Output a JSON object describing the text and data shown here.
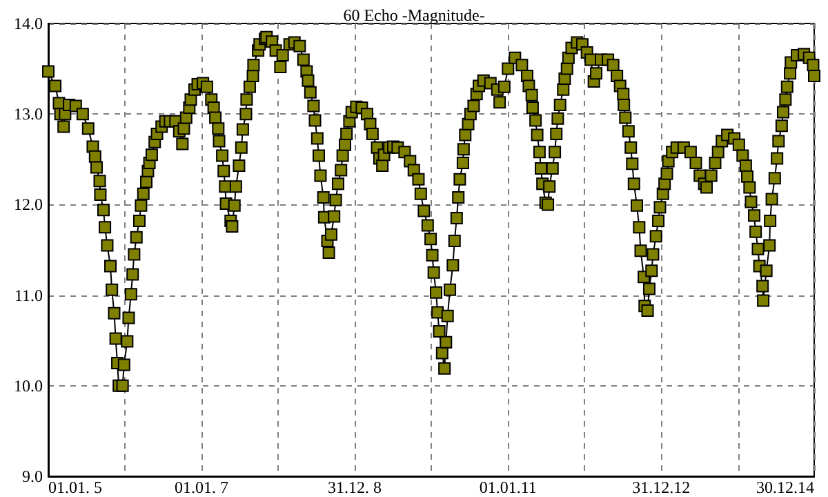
{
  "chart_data": {
    "type": "line",
    "title": "60 Echo -Magnitude-",
    "marker": "square",
    "line_style": "solid",
    "grid": true,
    "xlim": [
      "2005-01-01",
      "2014-12-30"
    ],
    "xticks": [
      {
        "value": "2005-01-01",
        "label": "01.01. 5"
      },
      {
        "value": "2006-01-01",
        "label": null
      },
      {
        "value": "2007-01-01",
        "label": "01.01. 7"
      },
      {
        "value": "2008-01-01",
        "label": null
      },
      {
        "value": "2008-12-31",
        "label": "31.12. 8"
      },
      {
        "value": "2010-01-01",
        "label": null
      },
      {
        "value": "2011-01-01",
        "label": "01.01.11"
      },
      {
        "value": "2012-01-01",
        "label": null
      },
      {
        "value": "2012-12-31",
        "label": "31.12.12"
      },
      {
        "value": "2014-01-01",
        "label": null
      },
      {
        "value": "2014-12-30",
        "label": "30.12.14"
      }
    ],
    "ylim": [
      9,
      14
    ],
    "yticks": [
      {
        "value": 9,
        "label": "9.0"
      },
      {
        "value": 10,
        "label": "10.0"
      },
      {
        "value": 11,
        "label": "11.0"
      },
      {
        "value": 12,
        "label": "12.0"
      },
      {
        "value": 13,
        "label": "13.0"
      },
      {
        "value": 14,
        "label": "14.0"
      }
    ],
    "x": [
      "2005-01-01",
      "2005-02-03",
      "2005-02-21",
      "2005-02-28",
      "2005-03-15",
      "2005-03-22",
      "2005-04-10",
      "2005-05-12",
      "2005-06-14",
      "2005-07-10",
      "2005-08-01",
      "2005-08-12",
      "2005-08-19",
      "2005-09-03",
      "2005-09-06",
      "2005-09-21",
      "2005-09-28",
      "2005-10-09",
      "2005-10-24",
      "2005-10-31",
      "2005-11-11",
      "2005-11-18",
      "2005-11-26",
      "2005-12-03",
      "2005-12-21",
      "2005-12-28",
      "2006-01-12",
      "2006-01-19",
      "2006-01-30",
      "2006-02-07",
      "2006-02-14",
      "2006-02-25",
      "2006-03-11",
      "2006-03-19",
      "2006-03-30",
      "2006-04-13",
      "2006-04-21",
      "2006-04-28",
      "2006-05-09",
      "2006-05-23",
      "2006-06-03",
      "2006-06-25",
      "2006-07-13",
      "2006-08-04",
      "2006-08-30",
      "2006-09-17",
      "2006-10-02",
      "2006-10-09",
      "2006-10-20",
      "2006-11-04",
      "2006-11-11",
      "2006-11-29",
      "2006-12-14",
      "2007-01-08",
      "2007-01-27",
      "2007-02-17",
      "2007-02-28",
      "2007-03-08",
      "2007-03-22",
      "2007-03-26",
      "2007-04-10",
      "2007-04-17",
      "2007-04-24",
      "2007-04-28",
      "2007-05-20",
      "2007-05-27",
      "2007-06-07",
      "2007-06-14",
      "2007-06-29",
      "2007-07-10",
      "2007-07-17",
      "2007-08-01",
      "2007-08-04",
      "2007-08-19",
      "2007-09-03",
      "2007-09-06",
      "2007-09-28",
      "2007-10-05",
      "2007-10-31",
      "2007-11-07",
      "2007-12-03",
      "2007-12-21",
      "2008-01-12",
      "2008-01-23",
      "2008-02-25",
      "2008-03-19",
      "2008-04-13",
      "2008-05-01",
      "2008-05-16",
      "2008-05-23",
      "2008-06-03",
      "2008-06-18",
      "2008-06-25",
      "2008-07-06",
      "2008-07-13",
      "2008-07-21",
      "2008-08-04",
      "2008-08-08",
      "2008-08-23",
      "2008-08-30",
      "2008-09-10",
      "2008-09-24",
      "2008-10-02",
      "2008-10-13",
      "2008-10-27",
      "2008-11-04",
      "2008-11-15",
      "2008-11-22",
      "2008-12-06",
      "2008-12-17",
      "2009-01-08",
      "2009-02-03",
      "2009-02-28",
      "2009-03-15",
      "2009-03-26",
      "2009-04-17",
      "2009-04-28",
      "2009-05-12",
      "2009-05-20",
      "2009-06-14",
      "2009-07-03",
      "2009-07-24",
      "2009-08-26",
      "2009-09-21",
      "2009-10-09",
      "2009-10-31",
      "2009-11-11",
      "2009-11-26",
      "2009-12-14",
      "2009-12-28",
      "2010-01-05",
      "2010-01-12",
      "2010-01-23",
      "2010-01-30",
      "2010-02-07",
      "2010-02-21",
      "2010-03-04",
      "2010-03-11",
      "2010-03-19",
      "2010-03-30",
      "2010-04-13",
      "2010-04-21",
      "2010-05-01",
      "2010-05-09",
      "2010-05-16",
      "2010-05-31",
      "2010-06-03",
      "2010-06-11",
      "2010-06-25",
      "2010-07-06",
      "2010-07-21",
      "2010-08-04",
      "2010-08-15",
      "2010-09-06",
      "2010-10-09",
      "2010-11-11",
      "2010-11-22",
      "2010-12-14",
      "2011-01-01",
      "2011-02-03",
      "2011-03-08",
      "2011-04-02",
      "2011-04-10",
      "2011-04-24",
      "2011-04-28",
      "2011-05-12",
      "2011-05-20",
      "2011-05-31",
      "2011-06-07",
      "2011-06-14",
      "2011-06-29",
      "2011-07-10",
      "2011-07-17",
      "2011-08-01",
      "2011-08-12",
      "2011-08-19",
      "2011-08-26",
      "2011-09-06",
      "2011-09-21",
      "2011-09-28",
      "2011-10-09",
      "2011-10-16",
      "2011-10-31",
      "2011-11-26",
      "2011-12-21",
      "2012-01-12",
      "2012-01-30",
      "2012-02-14",
      "2012-02-25",
      "2012-03-19",
      "2012-04-21",
      "2012-05-16",
      "2012-06-03",
      "2012-06-18",
      "2012-07-03",
      "2012-07-06",
      "2012-07-13",
      "2012-07-28",
      "2012-08-08",
      "2012-08-15",
      "2012-08-23",
      "2012-09-06",
      "2012-09-17",
      "2012-09-24",
      "2012-10-09",
      "2012-10-13",
      "2012-10-27",
      "2012-11-04",
      "2012-11-15",
      "2012-11-22",
      "2012-12-06",
      "2012-12-17",
      "2012-12-25",
      "2013-01-08",
      "2013-01-16",
      "2013-01-27",
      "2013-02-03",
      "2013-02-21",
      "2013-03-15",
      "2013-04-17",
      "2013-05-20",
      "2013-06-14",
      "2013-07-03",
      "2013-07-24",
      "2013-08-04",
      "2013-08-26",
      "2013-09-14",
      "2013-09-28",
      "2013-10-16",
      "2013-11-11",
      "2013-12-14",
      "2014-01-05",
      "2014-01-23",
      "2014-02-07",
      "2014-02-14",
      "2014-02-25",
      "2014-03-04",
      "2014-03-19",
      "2014-03-26",
      "2014-04-06",
      "2014-04-13",
      "2014-04-28",
      "2014-05-01",
      "2014-05-16",
      "2014-05-31",
      "2014-06-03",
      "2014-06-11",
      "2014-06-25",
      "2014-07-06",
      "2014-07-13",
      "2014-07-28",
      "2014-08-04",
      "2014-08-15",
      "2014-08-23",
      "2014-09-06",
      "2014-09-10",
      "2014-10-09",
      "2014-11-11",
      "2014-12-06",
      "2014-12-25",
      "2014-12-30"
    ],
    "series": [
      {
        "color": "#808000",
        "values": [
          13.47,
          13.31,
          13.12,
          13.0,
          12.86,
          13.0,
          13.1,
          13.09,
          13.0,
          12.84,
          12.64,
          12.53,
          12.41,
          12.26,
          12.11,
          11.94,
          11.75,
          11.55,
          11.32,
          11.06,
          10.8,
          10.52,
          10.25,
          10.0,
          10.0,
          10.23,
          10.49,
          10.75,
          11.01,
          11.23,
          11.45,
          11.64,
          11.82,
          11.99,
          12.12,
          12.25,
          12.37,
          12.46,
          12.55,
          12.69,
          12.78,
          12.86,
          12.92,
          12.92,
          12.92,
          12.81,
          12.67,
          12.84,
          12.96,
          13.07,
          13.16,
          13.27,
          13.33,
          13.34,
          13.3,
          13.16,
          13.07,
          12.96,
          12.84,
          12.7,
          12.54,
          12.37,
          12.2,
          12.01,
          11.82,
          11.76,
          11.99,
          12.2,
          12.43,
          12.63,
          12.83,
          13.0,
          13.16,
          13.3,
          13.42,
          13.54,
          13.7,
          13.77,
          13.83,
          13.85,
          13.8,
          13.7,
          13.52,
          13.65,
          13.77,
          13.79,
          13.75,
          13.6,
          13.47,
          13.37,
          13.24,
          13.09,
          12.93,
          12.73,
          12.54,
          12.32,
          12.08,
          11.86,
          11.6,
          11.47,
          11.67,
          11.87,
          12.05,
          12.23,
          12.38,
          12.54,
          12.66,
          12.78,
          12.92,
          13.02,
          13.08,
          13.07,
          13.0,
          12.89,
          12.78,
          12.63,
          12.51,
          12.43,
          12.55,
          12.63,
          12.64,
          12.63,
          12.58,
          12.48,
          12.38,
          12.28,
          12.12,
          11.93,
          11.77,
          11.62,
          11.44,
          11.25,
          11.03,
          10.81,
          10.6,
          10.36,
          10.19,
          10.48,
          10.77,
          11.06,
          11.33,
          11.6,
          11.85,
          12.08,
          12.28,
          12.46,
          12.61,
          12.77,
          12.89,
          13.0,
          13.09,
          13.22,
          13.31,
          13.37,
          13.34,
          13.27,
          13.13,
          13.3,
          13.5,
          13.62,
          13.54,
          13.42,
          13.31,
          13.21,
          13.07,
          12.93,
          12.77,
          12.58,
          12.4,
          12.23,
          12.02,
          12.0,
          12.2,
          12.4,
          12.58,
          12.78,
          12.95,
          13.1,
          13.27,
          13.39,
          13.5,
          13.62,
          13.73,
          13.79,
          13.77,
          13.68,
          13.6,
          13.36,
          13.45,
          13.6,
          13.6,
          13.54,
          13.42,
          13.31,
          13.22,
          13.1,
          12.96,
          12.81,
          12.63,
          12.45,
          12.23,
          11.99,
          11.75,
          11.49,
          11.2,
          10.88,
          10.83,
          11.07,
          11.27,
          11.45,
          11.65,
          11.82,
          11.97,
          12.12,
          12.23,
          12.34,
          12.48,
          12.58,
          12.63,
          12.63,
          12.58,
          12.46,
          12.32,
          12.23,
          12.19,
          12.32,
          12.46,
          12.58,
          12.7,
          12.77,
          12.73,
          12.66,
          12.54,
          12.43,
          12.31,
          12.19,
          12.03,
          11.88,
          11.7,
          11.51,
          11.32,
          11.1,
          10.94,
          11.27,
          11.55,
          11.82,
          12.06,
          12.29,
          12.51,
          12.7,
          12.87,
          13.02,
          13.16,
          13.3,
          13.45,
          13.57,
          13.65,
          13.66,
          13.62,
          13.54,
          13.42
        ]
      }
    ]
  }
}
